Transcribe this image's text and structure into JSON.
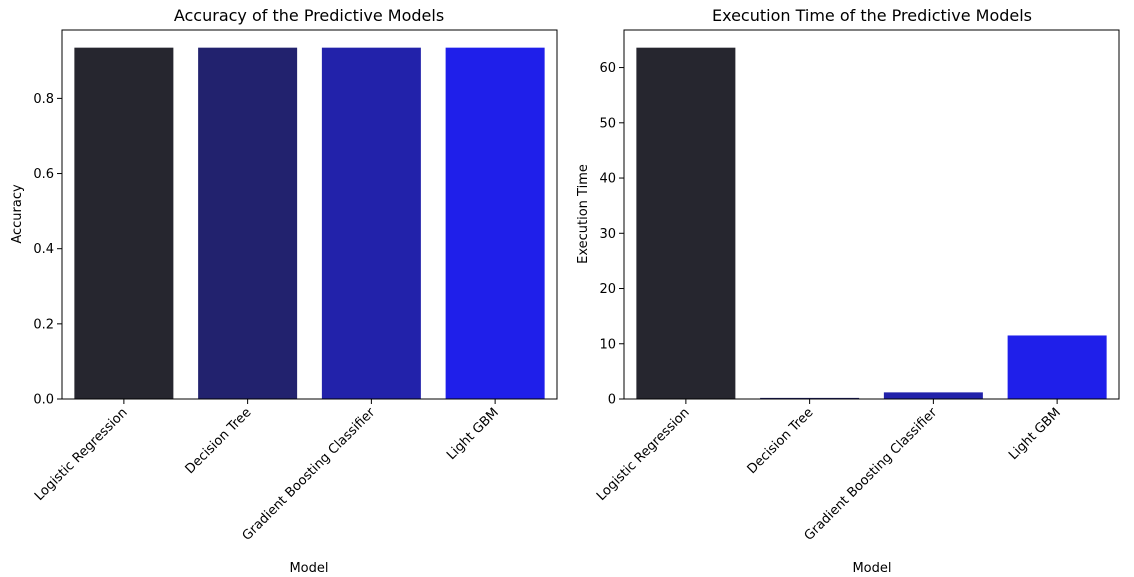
{
  "chart_data": [
    {
      "type": "bar",
      "title": "Accuracy of the Predictive Models",
      "xlabel": "Model",
      "ylabel": "Accuracy",
      "categories": [
        "Logistic Regression",
        "Decision Tree",
        "Gradient Boosting Classifier",
        "Light GBM"
      ],
      "values": [
        0.935,
        0.935,
        0.935,
        0.935
      ],
      "colors": [
        "#26262f",
        "#22226e",
        "#2222aa",
        "#1f1fea"
      ],
      "ylim": [
        0,
        0.982
      ],
      "yticks": [
        "0.0",
        "0.2",
        "0.4",
        "0.6",
        "0.8"
      ],
      "ytick_values": [
        0,
        0.2,
        0.4,
        0.6,
        0.8
      ],
      "grid": false
    },
    {
      "type": "bar",
      "title": "Execution Time of the Predictive Models",
      "xlabel": "Model",
      "ylabel": "Execution Time",
      "categories": [
        "Logistic Regression",
        "Decision Tree",
        "Gradient Boosting Classifier",
        "Light GBM"
      ],
      "values": [
        63.6,
        0.2,
        1.2,
        11.5
      ],
      "colors": [
        "#26262f",
        "#22226e",
        "#2222aa",
        "#1f1fea"
      ],
      "ylim": [
        0,
        66.8
      ],
      "yticks": [
        "0",
        "10",
        "20",
        "30",
        "40",
        "50",
        "60"
      ],
      "ytick_values": [
        0,
        10,
        20,
        30,
        40,
        50,
        60
      ],
      "grid": false
    }
  ]
}
